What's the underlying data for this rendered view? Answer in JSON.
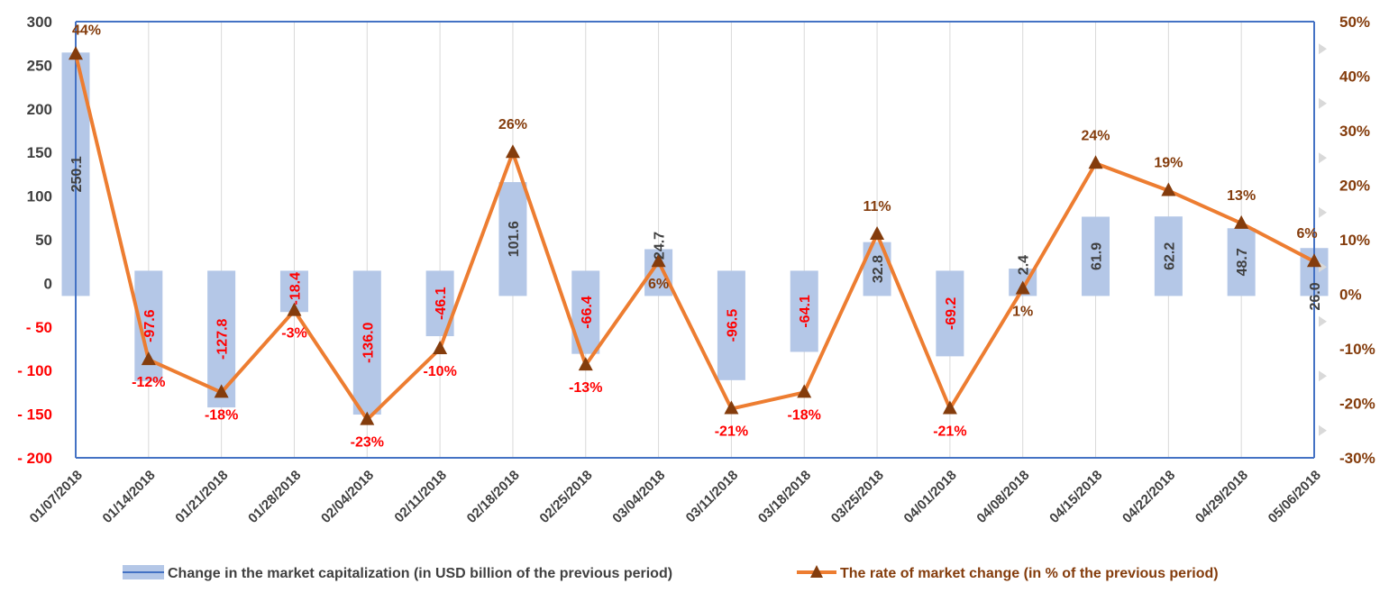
{
  "chart_data": {
    "type": "bar",
    "title": "",
    "categories": [
      "01/07/2018",
      "01/14/2018",
      "01/21/2018",
      "01/28/2018",
      "02/04/2018",
      "02/11/2018",
      "02/18/2018",
      "02/25/2018",
      "03/04/2018",
      "03/11/2018",
      "03/18/2018",
      "03/25/2018",
      "04/01/2018",
      "04/08/2018",
      "04/15/2018",
      "04/22/2018",
      "04/29/2018",
      "05/06/2018"
    ],
    "series": [
      {
        "name": "Change in the market capitalization  (in USD billion of the previous period)",
        "type": "bar",
        "axis": "left",
        "values": [
          250.1,
          -97.6,
          -127.8,
          -18.4,
          -136.0,
          -46.1,
          101.6,
          -66.4,
          24.7,
          -96.5,
          -64.1,
          32.8,
          -69.2,
          2.4,
          61.9,
          62.2,
          48.7,
          26.0
        ],
        "labels": [
          "250.1",
          "-97.6",
          "-127.8",
          "-18.4",
          "-136.0",
          "-46.1",
          "101.6",
          "-66.4",
          "24.7",
          "-96.5",
          "-64.1",
          "32.8",
          "-69.2",
          "2.4",
          "61.9",
          "62.2",
          "48.7",
          "26.0"
        ],
        "color": "#b4c7e7"
      },
      {
        "name": "The rate of market change (in % of the previous period)",
        "type": "line",
        "axis": "right",
        "values": [
          44,
          -12,
          -18,
          -3,
          -23,
          -10,
          26,
          -13,
          6,
          -21,
          -18,
          11,
          -21,
          1,
          24,
          19,
          13,
          6
        ],
        "labels": [
          "44%",
          "-12%",
          "-18%",
          "-3%",
          "-23%",
          "-10%",
          "26%",
          "-13%",
          "6%",
          "-21%",
          "-18%",
          "11%",
          "-21%",
          "1%",
          "24%",
          "19%",
          "13%",
          "6%"
        ],
        "color": "#ed7d31",
        "marker_color": "#843c0c"
      }
    ],
    "y_left": {
      "ylim": [
        -200,
        300
      ],
      "ticks": [
        -200,
        -150,
        -100,
        -50,
        0,
        50,
        100,
        150,
        200,
        250,
        300
      ],
      "tick_labels": [
        "- 200",
        "- 150",
        "- 100",
        "- 50",
        "0",
        "50",
        "100",
        "150",
        "200",
        "250",
        "300"
      ]
    },
    "y_right": {
      "ylim": [
        -30,
        50
      ],
      "ticks": [
        -30,
        -20,
        -10,
        0,
        10,
        20,
        30,
        40,
        50
      ],
      "tick_labels": [
        "-30%",
        "-20%",
        "-10%",
        "0%",
        "10%",
        "20%",
        "30%",
        "40%",
        "50%"
      ]
    },
    "grid": "vertical",
    "legend_position": "bottom",
    "colors": {
      "positive_label": "#404040",
      "negative_label": "#ff0000",
      "pct_positive": "#843c0c",
      "pct_negative": "#ff0000",
      "axis": "#4472c4",
      "right_tick": "#843c0c",
      "left_tick_negative": "#ff0000",
      "left_tick_positive": "#404040"
    }
  }
}
